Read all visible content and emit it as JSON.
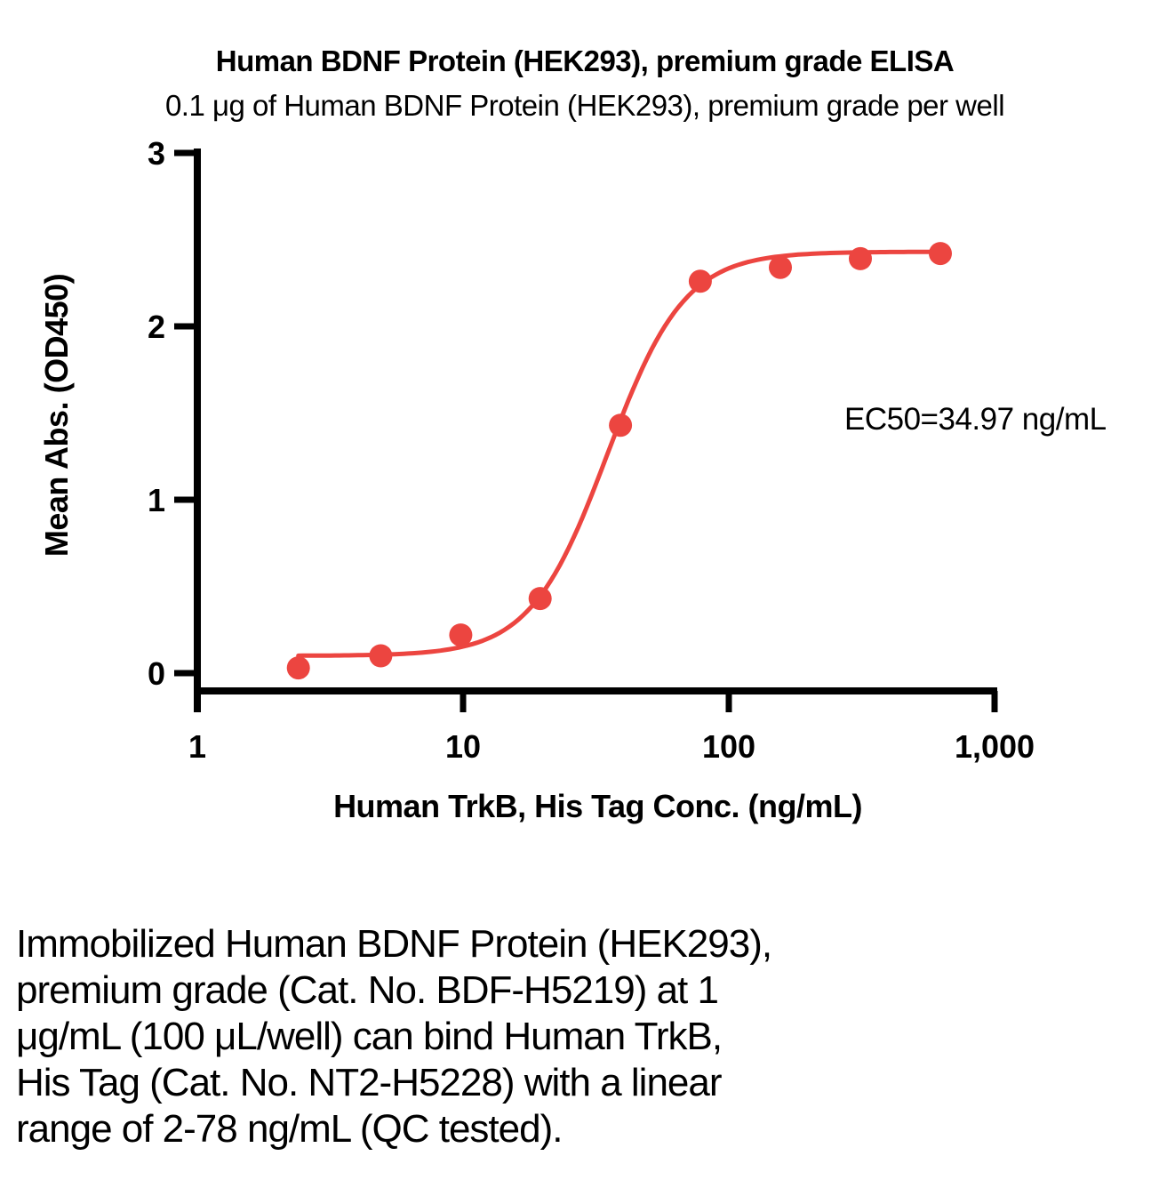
{
  "chart": {
    "title": "Human BDNF Protein (HEK293), premium grade ELISA",
    "subtitle": "0.1 μg of Human BDNF Protein (HEK293), premium grade per well",
    "ylabel": "Mean Abs. (OD450)",
    "xlabel": "Human TrkB, His Tag Conc. (ng/mL)",
    "ec50_label": "EC50=34.97 ng/mL"
  },
  "chart_data": {
    "type": "scatter",
    "title": "Human BDNF Protein (HEK293), premium grade ELISA",
    "subtitle": "0.1 μg of Human BDNF Protein (HEK293), premium grade per well",
    "xlabel": "Human TrkB, His Tag Conc. (ng/mL)",
    "ylabel": "Mean Abs. (OD450)",
    "x_scale": "log10",
    "xlim": [
      1,
      1000
    ],
    "ylim": [
      0,
      3
    ],
    "grid": false,
    "legend": "none",
    "x": [
      2.4,
      4.9,
      9.8,
      19.5,
      39.1,
      78.1,
      156.3,
      312.5,
      625
    ],
    "y": [
      0.03,
      0.1,
      0.22,
      0.43,
      1.43,
      2.26,
      2.34,
      2.39,
      2.42
    ],
    "x_ticks": [
      {
        "value": 1,
        "label": "1"
      },
      {
        "value": 10,
        "label": "10"
      },
      {
        "value": 100,
        "label": "100"
      },
      {
        "value": 1000,
        "label": "1,000"
      }
    ],
    "y_ticks": [
      {
        "value": 0,
        "label": "0"
      },
      {
        "value": 1,
        "label": "1"
      },
      {
        "value": 2,
        "label": "2"
      },
      {
        "value": 3,
        "label": "3"
      }
    ],
    "curve_fit": {
      "model": "4PL",
      "ec50": 34.97,
      "hill": 3.0,
      "bottom": 0.1,
      "top": 2.43
    },
    "annotation": "EC50=34.97 ng/mL",
    "point_color": "#EC4540",
    "line_color": "#EC4540",
    "axis_color": "#000000"
  },
  "caption": {
    "lines": [
      "Immobilized Human BDNF Protein (HEK293),",
      "premium grade (Cat. No. BDF-H5219) at 1",
      "μg/mL (100 μL/well) can bind Human TrkB,",
      "His Tag (Cat. No. NT2-H5228) with a linear",
      "range of 2-78 ng/mL (QC tested)."
    ]
  }
}
